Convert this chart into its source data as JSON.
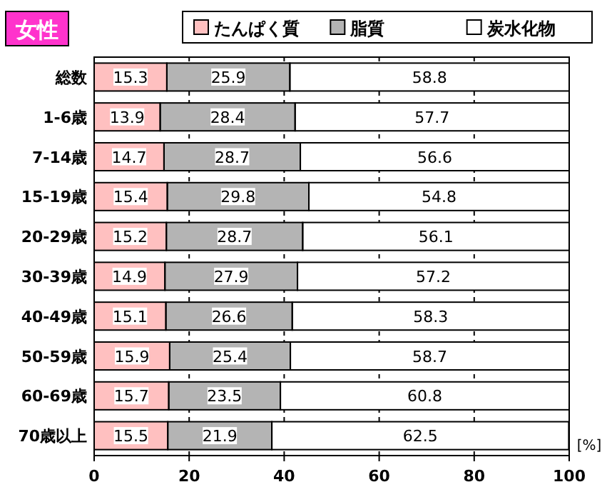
{
  "chart_data": {
    "type": "bar",
    "orientation": "horizontal",
    "stacked": true,
    "title": "女性",
    "xlabel": "[%]",
    "categories": [
      "総数",
      "1-6歳",
      "7-14歳",
      "15-19歳",
      "20-29歳",
      "30-39歳",
      "40-49歳",
      "50-59歳",
      "60-69歳",
      "70歳以上"
    ],
    "series": [
      {
        "name": "たんぱく質",
        "color": "#ffc0c0",
        "values": [
          15.3,
          13.9,
          14.7,
          15.4,
          15.2,
          14.9,
          15.1,
          15.9,
          15.7,
          15.5
        ]
      },
      {
        "name": "脂質",
        "color": "#b4b4b4",
        "values": [
          25.9,
          28.4,
          28.7,
          29.8,
          28.7,
          27.9,
          26.6,
          25.4,
          23.5,
          21.9
        ]
      },
      {
        "name": "炭水化物",
        "color": "#ffffff",
        "values": [
          58.8,
          57.7,
          56.6,
          54.8,
          56.1,
          57.2,
          58.3,
          58.7,
          60.8,
          62.5
        ]
      }
    ],
    "xlim": [
      0,
      100
    ],
    "xticks": [
      0,
      20,
      40,
      60,
      80,
      100
    ],
    "grid": "x",
    "legend": "top",
    "data_labels": true
  }
}
